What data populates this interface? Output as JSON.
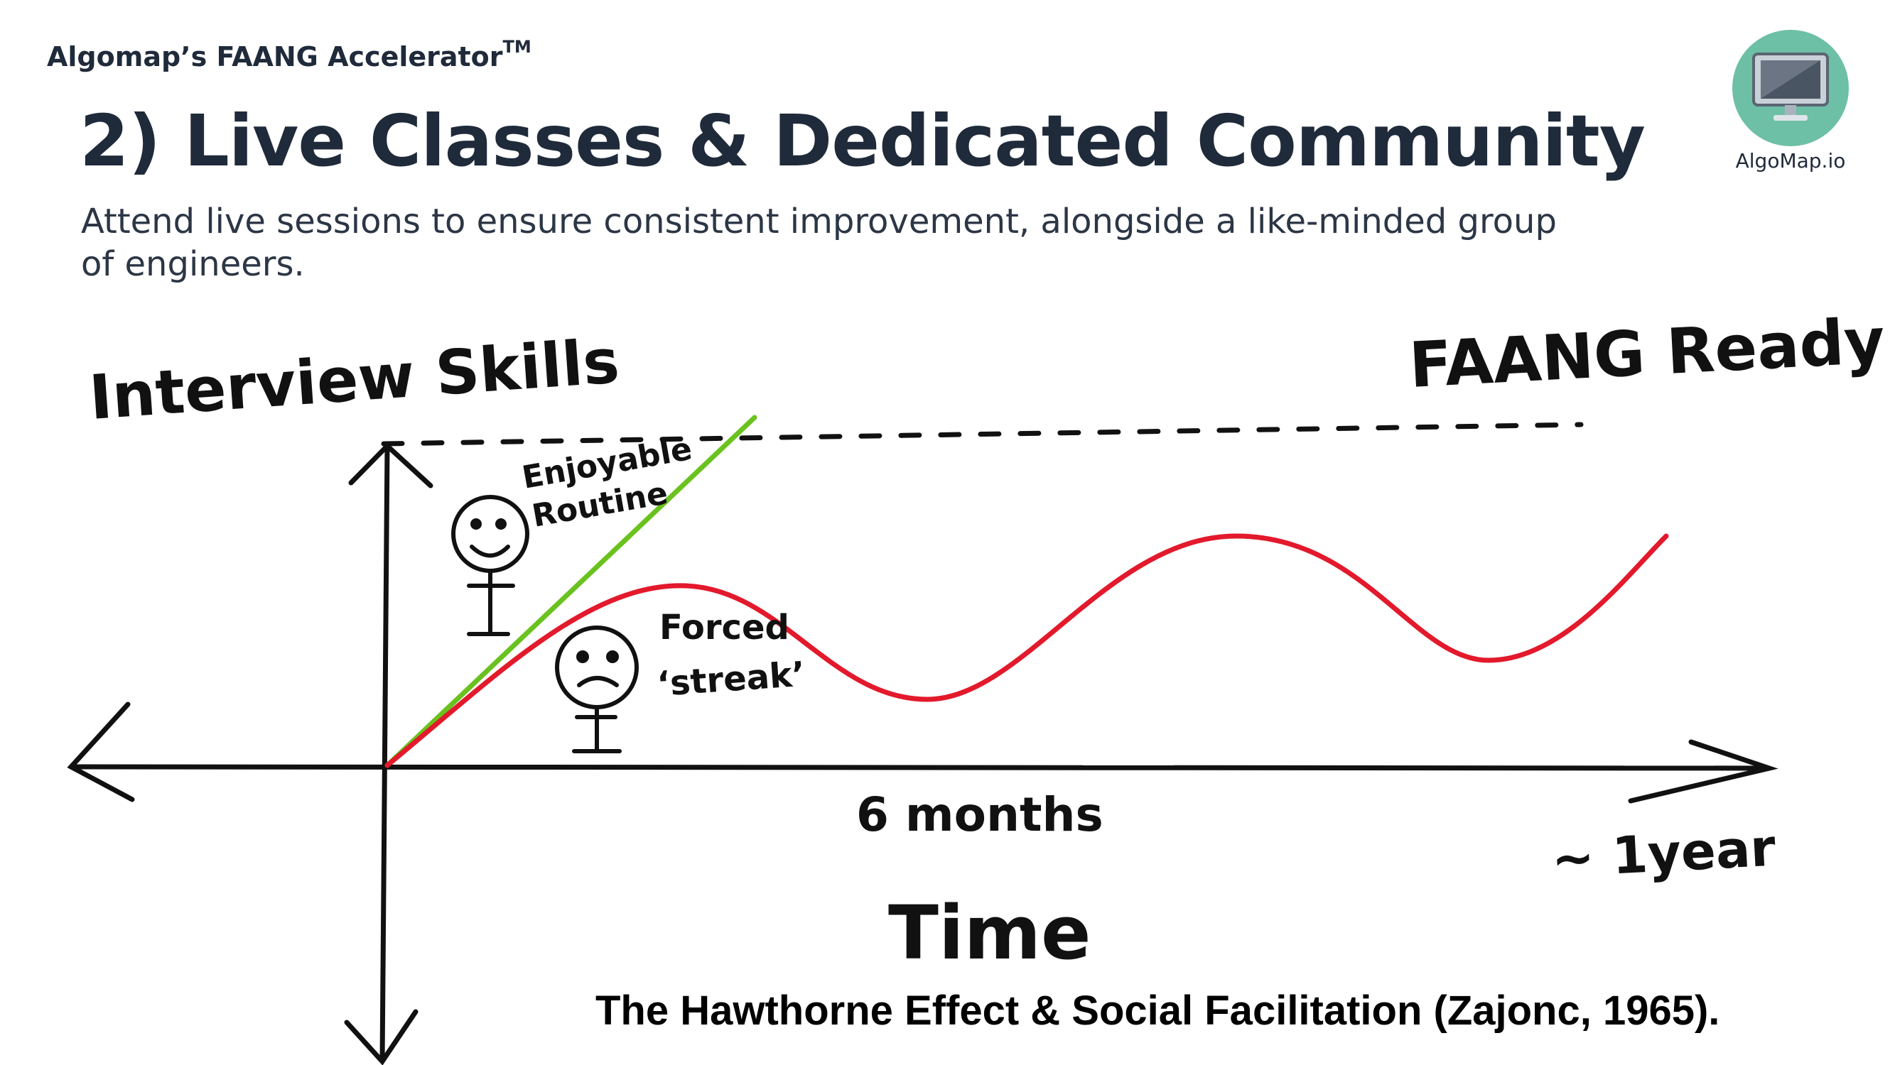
{
  "header": {
    "brand": "Algomap’s FAANG Accelerator",
    "trademark": "TM",
    "title": "2) Live Classes & Dedicated Community",
    "subtitle": "Attend live sessions to ensure consistent improvement, alongside a like-minded group of engineers."
  },
  "logo": {
    "label": "AlgoMap.io",
    "icon": "monitor-icon",
    "color": "#6dbfa6"
  },
  "diagram": {
    "y_axis_label": "Interview Skills",
    "x_axis_label": "Time",
    "target_label": "FAANG Ready",
    "mid_tick_label": "6 months",
    "end_tick_label": "~ 1year",
    "green_line": {
      "label_line1": "Enjoyable",
      "label_line2": "Routine",
      "color": "#6ac21e",
      "face": "smiley-face-icon"
    },
    "red_line": {
      "label_line1": "Forced",
      "label_line2": "‘streak’",
      "color": "#e3192c",
      "face": "frowny-face-icon"
    }
  },
  "citation": "The Hawthorne Effect & Social Facilitation (Zajonc, 1965)."
}
